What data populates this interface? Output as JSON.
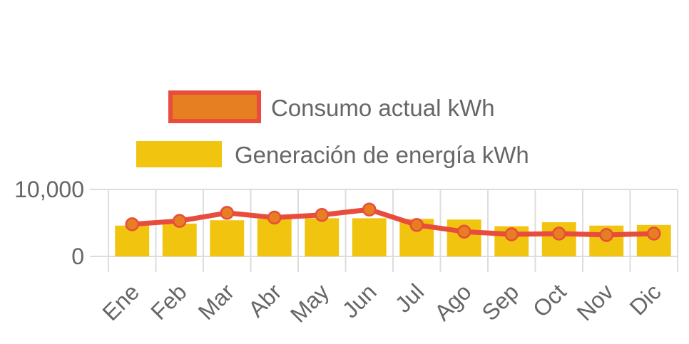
{
  "chart_data": {
    "type": "bar",
    "categories": [
      "Ene",
      "Feb",
      "Mar",
      "Abr",
      "May",
      "Jun",
      "Jul",
      "Ago",
      "Sep",
      "Oct",
      "Nov",
      "Dic"
    ],
    "series": [
      {
        "name": "Consumo actual kWh",
        "type": "line",
        "color": "#e84c3d",
        "point_fill": "#e67e22",
        "values": [
          4800,
          5300,
          6500,
          5800,
          6200,
          7000,
          4700,
          3700,
          3300,
          3400,
          3200,
          3400
        ]
      },
      {
        "name": "Generación de energía kWh",
        "type": "bar",
        "color": "#f1c40f",
        "values": [
          4600,
          4900,
          5400,
          5600,
          5700,
          5700,
          5600,
          5500,
          4500,
          5100,
          4600,
          4700
        ]
      }
    ],
    "y_ticks": [
      "10,000",
      "0"
    ],
    "ylim": [
      0,
      10000
    ],
    "grid": true,
    "legend": "top-center",
    "title": "",
    "xlabel": "",
    "ylabel": ""
  }
}
